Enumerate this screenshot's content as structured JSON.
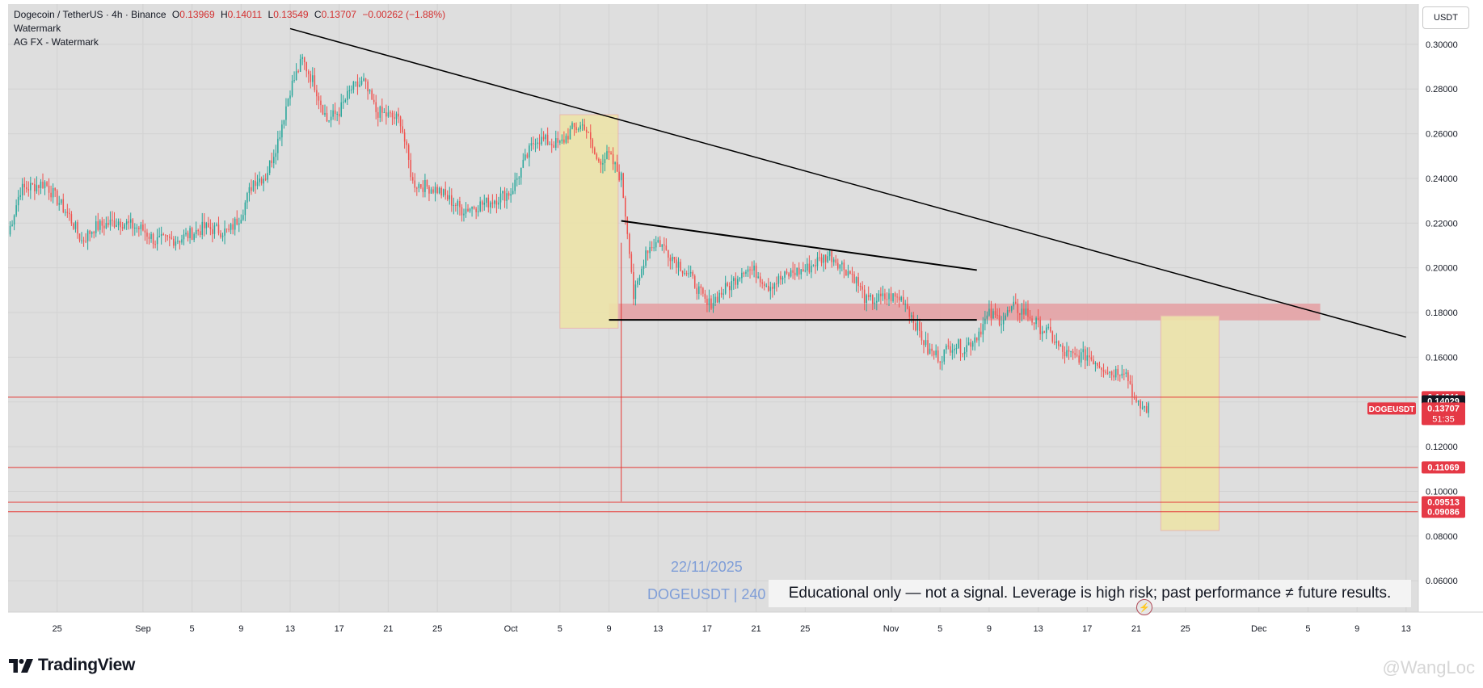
{
  "header": {
    "symbol_line": "Dogecoin / TetherUS · 4h · Binance",
    "ohlc": [
      {
        "k": "O",
        "v": "0.13969"
      },
      {
        "k": "H",
        "v": "0.14011"
      },
      {
        "k": "L",
        "v": "0.13549"
      },
      {
        "k": "C",
        "v": "0.13707"
      }
    ],
    "change": "−0.00262 (−1.88%)",
    "indicator1": "Watermark",
    "indicator2": "AG FX - Watermark"
  },
  "currency_button": "USDT",
  "watermark": {
    "date": "22/11/2025",
    "symbol": "DOGEUSDT | 240"
  },
  "disclaimer": "Educational only — not a signal. Leverage is high risk; past performance ≠ future results.",
  "footer": {
    "brand": "TradingView",
    "author": "@WangLoc"
  },
  "colors": {
    "up": "#26a69a",
    "down": "#ef5350",
    "plot_bg": "#dedede",
    "level_line": "#e53935",
    "zone_red": "#e4a2a5",
    "zone_yellow": "#ece3a8",
    "trendline": "#000000"
  },
  "chart_data": {
    "type": "candlestick",
    "symbol": "DOGEUSDT",
    "timeframe": "4h",
    "x_axis": {
      "type": "date",
      "range": [
        "2025-08-21",
        "2025-12-14"
      ],
      "tick_labels": [
        {
          "label": "25",
          "date": "2025-08-25"
        },
        {
          "label": "Sep",
          "date": "2025-09-01"
        },
        {
          "label": "5",
          "date": "2025-09-05"
        },
        {
          "label": "9",
          "date": "2025-09-09"
        },
        {
          "label": "13",
          "date": "2025-09-13"
        },
        {
          "label": "17",
          "date": "2025-09-17"
        },
        {
          "label": "21",
          "date": "2025-09-21"
        },
        {
          "label": "25",
          "date": "2025-09-25"
        },
        {
          "label": "Oct",
          "date": "2025-10-01"
        },
        {
          "label": "5",
          "date": "2025-10-05"
        },
        {
          "label": "9",
          "date": "2025-10-09"
        },
        {
          "label": "13",
          "date": "2025-10-13"
        },
        {
          "label": "17",
          "date": "2025-10-17"
        },
        {
          "label": "21",
          "date": "2025-10-21"
        },
        {
          "label": "25",
          "date": "2025-10-25"
        },
        {
          "label": "Nov",
          "date": "2025-11-01"
        },
        {
          "label": "5",
          "date": "2025-11-05"
        },
        {
          "label": "9",
          "date": "2025-11-09"
        },
        {
          "label": "13",
          "date": "2025-11-13"
        },
        {
          "label": "17",
          "date": "2025-11-17"
        },
        {
          "label": "21",
          "date": "2025-11-21"
        },
        {
          "label": "25",
          "date": "2025-11-25"
        },
        {
          "label": "Dec",
          "date": "2025-12-01"
        },
        {
          "label": "5",
          "date": "2025-12-05"
        },
        {
          "label": "9",
          "date": "2025-12-09"
        },
        {
          "label": "13",
          "date": "2025-12-13"
        }
      ]
    },
    "y_axis": {
      "range": [
        0.046,
        0.318
      ],
      "tick_labels": [
        "0.30000",
        "0.28000",
        "0.26000",
        "0.24000",
        "0.22000",
        "0.20000",
        "0.18000",
        "0.16000",
        "0.14000",
        "0.12000",
        "0.10000",
        "0.08000",
        "0.06000"
      ]
    },
    "grid": true,
    "price_path": [
      [
        "2025-08-21",
        0.215
      ],
      [
        "2025-08-22",
        0.235
      ],
      [
        "2025-08-24",
        0.238
      ],
      [
        "2025-08-26",
        0.223
      ],
      [
        "2025-08-27",
        0.212
      ],
      [
        "2025-08-28",
        0.218
      ],
      [
        "2025-08-30",
        0.221
      ],
      [
        "2025-09-01",
        0.217
      ],
      [
        "2025-09-02",
        0.212
      ],
      [
        "2025-09-04",
        0.213
      ],
      [
        "2025-09-06",
        0.218
      ],
      [
        "2025-09-08",
        0.216
      ],
      [
        "2025-09-09",
        0.224
      ],
      [
        "2025-09-10",
        0.239
      ],
      [
        "2025-09-11",
        0.241
      ],
      [
        "2025-09-12",
        0.257
      ],
      [
        "2025-09-13",
        0.28
      ],
      [
        "2025-09-14",
        0.293
      ],
      [
        "2025-09-15",
        0.282
      ],
      [
        "2025-09-16",
        0.266
      ],
      [
        "2025-09-17",
        0.27
      ],
      [
        "2025-09-18",
        0.28
      ],
      [
        "2025-09-19",
        0.283
      ],
      [
        "2025-09-20",
        0.27
      ],
      [
        "2025-09-22",
        0.266
      ],
      [
        "2025-09-23",
        0.238
      ],
      [
        "2025-09-25",
        0.235
      ],
      [
        "2025-09-27",
        0.226
      ],
      [
        "2025-09-29",
        0.229
      ],
      [
        "2025-10-01",
        0.234
      ],
      [
        "2025-10-02",
        0.246
      ],
      [
        "2025-10-03",
        0.258
      ],
      [
        "2025-10-05",
        0.255
      ],
      [
        "2025-10-06",
        0.262
      ],
      [
        "2025-10-07",
        0.264
      ],
      [
        "2025-10-08",
        0.248
      ],
      [
        "2025-10-09",
        0.25
      ],
      [
        "2025-10-10",
        0.24
      ],
      [
        "2025-10-10T18",
        0.205
      ],
      [
        "2025-10-11",
        0.187
      ],
      [
        "2025-10-11T12",
        0.195
      ],
      [
        "2025-10-12",
        0.208
      ],
      [
        "2025-10-13",
        0.212
      ],
      [
        "2025-10-14",
        0.206
      ],
      [
        "2025-10-15",
        0.2
      ],
      [
        "2025-10-16",
        0.193
      ],
      [
        "2025-10-17",
        0.183
      ],
      [
        "2025-10-18",
        0.188
      ],
      [
        "2025-10-19",
        0.193
      ],
      [
        "2025-10-20",
        0.2
      ],
      [
        "2025-10-21",
        0.198
      ],
      [
        "2025-10-22",
        0.192
      ],
      [
        "2025-10-23",
        0.195
      ],
      [
        "2025-10-24",
        0.198
      ],
      [
        "2025-10-25",
        0.199
      ],
      [
        "2025-10-26",
        0.203
      ],
      [
        "2025-10-27",
        0.206
      ],
      [
        "2025-10-28",
        0.201
      ],
      [
        "2025-10-29",
        0.196
      ],
      [
        "2025-10-30",
        0.185
      ],
      [
        "2025-10-31",
        0.186
      ],
      [
        "2025-11-01",
        0.187
      ],
      [
        "2025-11-02",
        0.186
      ],
      [
        "2025-11-03",
        0.175
      ],
      [
        "2025-11-04",
        0.163
      ],
      [
        "2025-11-05",
        0.16
      ],
      [
        "2025-11-06",
        0.166
      ],
      [
        "2025-11-07",
        0.164
      ],
      [
        "2025-11-08",
        0.17
      ],
      [
        "2025-11-09",
        0.179
      ],
      [
        "2025-11-10",
        0.177
      ],
      [
        "2025-11-11",
        0.182
      ],
      [
        "2025-11-12",
        0.18
      ],
      [
        "2025-11-13",
        0.174
      ],
      [
        "2025-11-14",
        0.17
      ],
      [
        "2025-11-15",
        0.162
      ],
      [
        "2025-11-16",
        0.16
      ],
      [
        "2025-11-17",
        0.161
      ],
      [
        "2025-11-18",
        0.157
      ],
      [
        "2025-11-19",
        0.153
      ],
      [
        "2025-11-20",
        0.155
      ],
      [
        "2025-11-20T12",
        0.148
      ],
      [
        "2025-11-21",
        0.138
      ],
      [
        "2025-11-22",
        0.137
      ]
    ],
    "trendlines": [
      {
        "from": [
          "2025-09-13",
          0.307
        ],
        "to": [
          "2025-12-13",
          0.169
        ]
      },
      {
        "from": [
          "2025-10-10",
          0.221
        ],
        "to": [
          "2025-11-08",
          0.199
        ]
      },
      {
        "from": [
          "2025-10-09",
          0.1767
        ],
        "to": [
          "2025-11-08",
          0.1767
        ]
      }
    ],
    "vertical_line": {
      "date": "2025-10-10",
      "from": 0.2112,
      "to": 0.0955
    },
    "zones": [
      {
        "color": "red",
        "x": [
          "2025-10-09",
          "2025-12-06"
        ],
        "y": [
          0.1765,
          0.184
        ]
      },
      {
        "color": "yellow",
        "x": [
          "2025-10-05",
          "2025-10-09T18"
        ],
        "y": [
          0.173,
          0.2685
        ]
      },
      {
        "color": "yellow",
        "x": [
          "2025-11-23",
          "2025-11-27T18"
        ],
        "y": [
          0.0825,
          0.1785
        ]
      }
    ],
    "horizontal_levels": [
      0.14211,
      0.11069,
      0.09513,
      0.09086
    ],
    "price_labels": [
      {
        "value": "0.14211",
        "price": 0.14211,
        "color": "red"
      },
      {
        "value": "0.14029",
        "price": 0.14029,
        "color": "dark"
      },
      {
        "value": "0.13707",
        "sub": "51:35",
        "price": 0.13707,
        "color": "red"
      },
      {
        "value": "0.11069",
        "price": 0.11069,
        "color": "red"
      },
      {
        "value": "0.09513",
        "price": 0.09513,
        "color": "red"
      },
      {
        "value": "0.09086",
        "price": 0.09086,
        "color": "red"
      }
    ],
    "symbol_tag": "DOGEUSDT"
  }
}
